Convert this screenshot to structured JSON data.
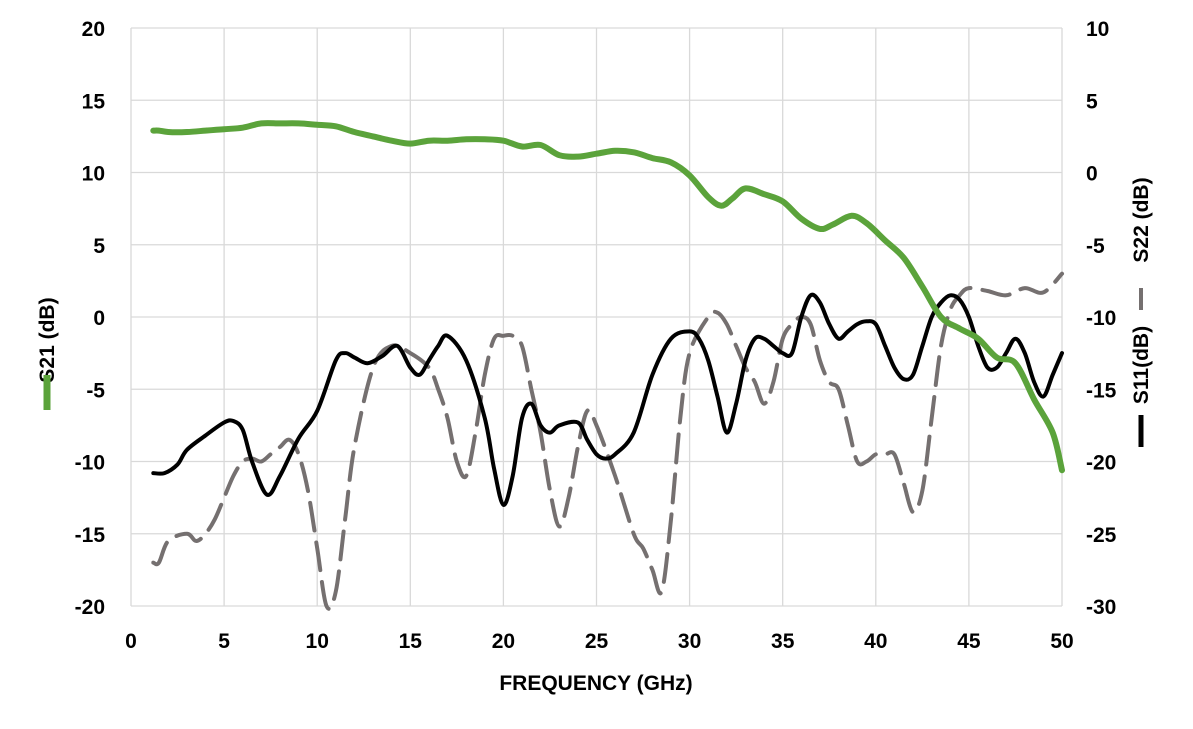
{
  "chart_data": {
    "type": "line",
    "xlabel": "FREQUENCY (GHz)",
    "xlim": [
      0,
      50
    ],
    "xticks": [
      "0",
      "5",
      "10",
      "15",
      "20",
      "25",
      "30",
      "35",
      "40",
      "45",
      "50"
    ],
    "y_left": {
      "label": "S21 (dB)",
      "lim": [
        -20,
        20
      ],
      "ticks": [
        "20",
        "15",
        "10",
        "5",
        "0",
        "-5",
        "-10",
        "-15",
        "-20"
      ]
    },
    "y_right": {
      "label_s22": "S22 (dB)",
      "label_s11": "S11(dB)",
      "lim": [
        -30,
        10
      ],
      "ticks": [
        "10",
        "5",
        "0",
        "-5",
        "-10",
        "-15",
        "-20",
        "-25",
        "-30"
      ]
    },
    "grid": true,
    "series": [
      {
        "key": "S21",
        "axis": "left",
        "color": "#5ba33b",
        "style": "solid",
        "x": [
          1.2,
          1.5,
          2,
          3,
          4,
          5,
          6,
          7,
          8,
          9,
          10,
          11,
          12,
          13,
          14,
          15,
          16,
          17,
          18,
          19,
          20,
          21,
          22,
          23,
          24,
          25,
          26,
          27,
          28,
          29,
          30,
          31,
          31.7,
          32.3,
          33,
          34,
          35,
          36,
          37,
          37.7,
          38.7,
          39.5,
          40.5,
          41.5,
          42.5,
          43.5,
          44.5,
          45.5,
          46.5,
          47.5,
          48.5,
          49.5,
          50
        ],
        "y": [
          12.9,
          12.9,
          12.8,
          12.8,
          12.9,
          13.0,
          13.1,
          13.4,
          13.4,
          13.4,
          13.3,
          13.2,
          12.8,
          12.5,
          12.2,
          12.0,
          12.2,
          12.2,
          12.3,
          12.3,
          12.2,
          11.8,
          11.9,
          11.2,
          11.1,
          11.3,
          11.5,
          11.4,
          11.0,
          10.7,
          9.8,
          8.3,
          7.7,
          8.2,
          8.9,
          8.5,
          8.0,
          6.8,
          6.1,
          6.4,
          7.0,
          6.5,
          5.3,
          4.1,
          2.1,
          0.0,
          -0.8,
          -1.5,
          -2.8,
          -3.2,
          -5.7,
          -8.0,
          -10.6
        ]
      },
      {
        "key": "S11",
        "axis": "right",
        "color": "#000000",
        "style": "solid",
        "x": [
          1.2,
          1.8,
          2.5,
          3,
          4,
          5,
          5.5,
          6,
          6.5,
          7.3,
          8,
          9,
          10,
          11,
          11.5,
          12,
          12.7,
          13.5,
          14.3,
          15,
          15.5,
          16,
          16.5,
          17,
          18,
          19,
          19.5,
          20,
          20.5,
          21,
          21.5,
          22,
          22.5,
          23,
          24,
          24.5,
          25,
          25.5,
          26,
          27,
          28,
          29,
          30,
          30.5,
          31,
          31.5,
          32,
          32.5,
          33,
          33.5,
          34,
          34.5,
          35,
          35.5,
          36,
          36.5,
          37,
          37.5,
          38,
          38.5,
          39,
          39.5,
          40,
          40.5,
          41,
          41.5,
          42,
          42.5,
          43,
          43.5,
          44,
          44.5,
          45,
          45.5,
          46,
          46.5,
          47,
          47.5,
          48,
          48.5,
          49,
          49.5,
          50
        ],
        "y": [
          -20.8,
          -20.8,
          -20.2,
          -19.2,
          -18.2,
          -17.3,
          -17.2,
          -17.8,
          -20.0,
          -22.3,
          -21.0,
          -18.4,
          -16.5,
          -13.0,
          -12.5,
          -12.8,
          -13.2,
          -12.7,
          -12.0,
          -13.5,
          -14.0,
          -13.0,
          -12.0,
          -11.3,
          -13.0,
          -17.0,
          -20.5,
          -23.0,
          -21.0,
          -17.0,
          -16.0,
          -17.5,
          -18.0,
          -17.5,
          -17.3,
          -18.5,
          -19.5,
          -19.8,
          -19.5,
          -18.0,
          -14.0,
          -11.5,
          -11.0,
          -11.5,
          -13.0,
          -15.5,
          -18.0,
          -16.0,
          -13.0,
          -11.5,
          -11.5,
          -12.0,
          -12.5,
          -12.5,
          -10.0,
          -8.5,
          -9.0,
          -10.5,
          -11.5,
          -11.0,
          -10.5,
          -10.3,
          -10.5,
          -12.0,
          -13.5,
          -14.3,
          -14.0,
          -12.0,
          -10.0,
          -9.0,
          -8.5,
          -8.8,
          -10.0,
          -12.0,
          -13.5,
          -13.5,
          -12.5,
          -11.5,
          -12.5,
          -14.5,
          -15.5,
          -14.0,
          -12.5
        ]
      },
      {
        "key": "S22",
        "axis": "right",
        "color": "#757070",
        "style": "dashed",
        "x": [
          1.2,
          1.5,
          2,
          3,
          3.5,
          4,
          4.5,
          5,
          5.5,
          6,
          6.5,
          7,
          7.5,
          8,
          8.5,
          9,
          9.5,
          10,
          10.5,
          11,
          11.5,
          12,
          13,
          14,
          15,
          16,
          16.5,
          17,
          17.5,
          18,
          18.5,
          19,
          19.5,
          20,
          20.5,
          21,
          21.5,
          22,
          22.5,
          23,
          23.5,
          24,
          24.5,
          25,
          26,
          27,
          27.5,
          28,
          28.5,
          29,
          29.5,
          30,
          31,
          31.5,
          32,
          32.5,
          33,
          33.5,
          34,
          34.5,
          35,
          35.5,
          36,
          36.5,
          37,
          37.5,
          38,
          38.5,
          39,
          39.5,
          40,
          40.5,
          41,
          41.5,
          42,
          42.5,
          43,
          43.5,
          44,
          44.5,
          45,
          46,
          47,
          48,
          49,
          50
        ],
        "y": [
          -27.0,
          -27.0,
          -25.5,
          -25.0,
          -25.5,
          -25.0,
          -24.0,
          -22.5,
          -21.0,
          -20.0,
          -19.8,
          -20.0,
          -19.5,
          -19.0,
          -18.5,
          -19.5,
          -22.0,
          -26.0,
          -30.0,
          -29.0,
          -24.0,
          -19.0,
          -13.5,
          -12.0,
          -12.5,
          -13.5,
          -15.0,
          -17.0,
          -20.0,
          -21.0,
          -18.0,
          -14.0,
          -11.5,
          -11.3,
          -11.3,
          -12.0,
          -15.0,
          -18.0,
          -22.0,
          -24.5,
          -22.5,
          -19.0,
          -16.5,
          -17.5,
          -21.0,
          -25.0,
          -26.0,
          -27.5,
          -29.0,
          -24.0,
          -17.0,
          -12.5,
          -10.0,
          -9.7,
          -10.5,
          -12.0,
          -13.5,
          -14.5,
          -16.0,
          -14.5,
          -11.5,
          -10.5,
          -10.0,
          -10.5,
          -13.0,
          -14.5,
          -15.0,
          -17.5,
          -20.0,
          -20.0,
          -19.5,
          -19.5,
          -19.5,
          -21.5,
          -23.5,
          -22.0,
          -17.0,
          -12.0,
          -9.5,
          -8.5,
          -8.0,
          -8.2,
          -8.5,
          -8.0,
          -8.3,
          -7.0
        ]
      }
    ]
  }
}
